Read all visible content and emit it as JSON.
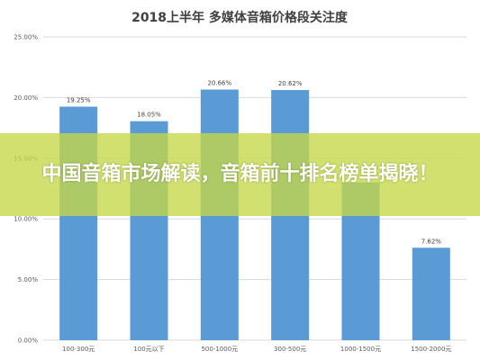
{
  "chart_data": {
    "type": "bar",
    "title": "2018上半年 多媒体音箱价格段关注度",
    "categories": [
      "100-300元",
      "100元以下",
      "500-1000元",
      "300-500元",
      "1000-1500元",
      "1500-2000元"
    ],
    "values": [
      19.25,
      18.05,
      20.66,
      20.62,
      13.0,
      7.62
    ],
    "data_labels": [
      "19.25%",
      "18.05%",
      "20.66%",
      "20.62%",
      "",
      "7.62%"
    ],
    "yticks": [
      "0.00%",
      "5.00%",
      "10.00%",
      "15.00%",
      "20.00%",
      "25.00%"
    ],
    "ylim": [
      0,
      25
    ],
    "grid": true,
    "bar_color": "#5b9bd5"
  },
  "banner": {
    "text": "中国音箱市场解读，音箱前十排名榜单揭晓！",
    "color": "#c4d746"
  }
}
